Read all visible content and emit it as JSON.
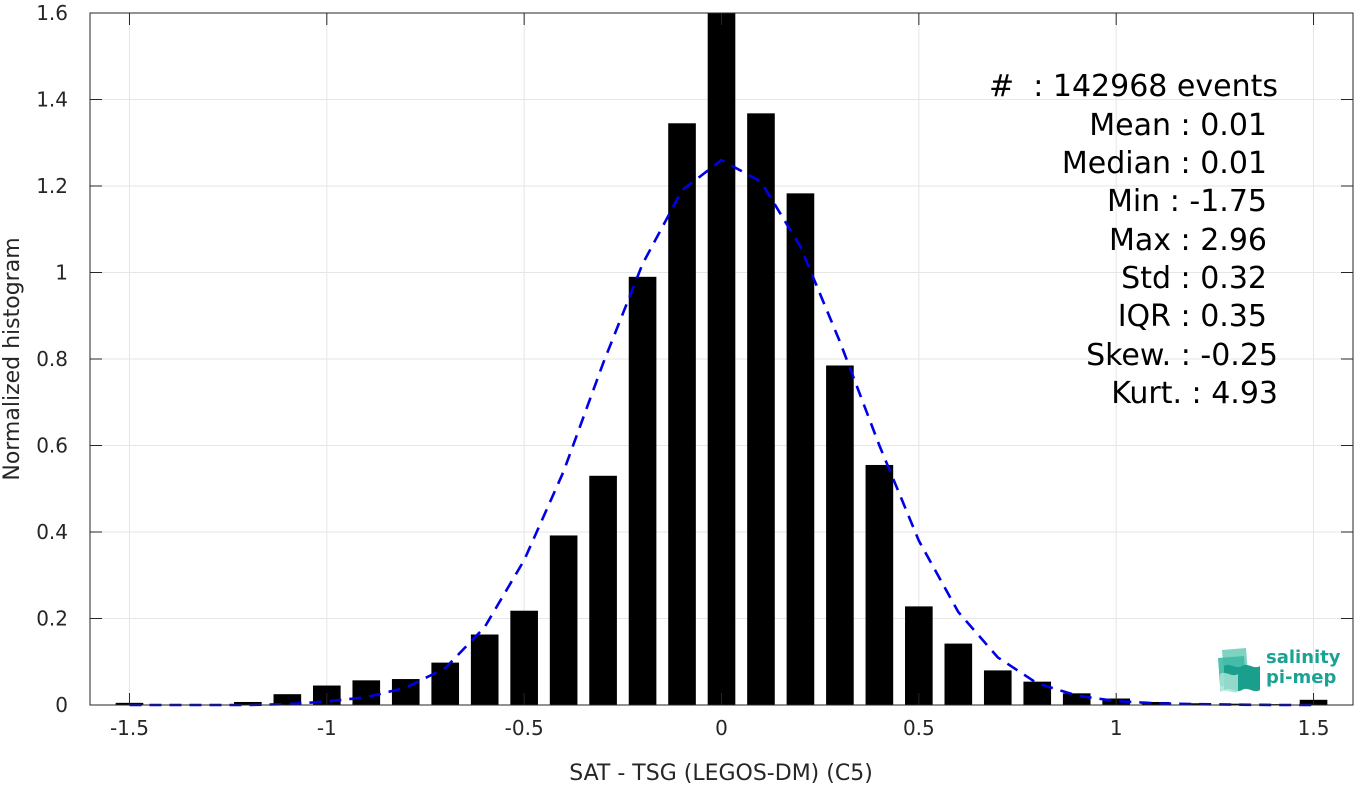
{
  "chart_data": {
    "type": "bar",
    "xlabel": "SAT - TSG (LEGOS-DM) (C5)",
    "ylabel": "Normalized histogram",
    "xlim": [
      -1.6,
      1.6
    ],
    "ylim": [
      0,
      1.6
    ],
    "xticks": [
      -1.5,
      -1,
      -0.5,
      0,
      0.5,
      1,
      1.5
    ],
    "xtick_labels": [
      "-1.5",
      "-1",
      "-0.5",
      "0",
      "0.5",
      "1",
      "1.5"
    ],
    "yticks": [
      0,
      0.2,
      0.4,
      0.6,
      0.8,
      1,
      1.2,
      1.4,
      1.6
    ],
    "ytick_labels": [
      "0",
      "0.2",
      "0.4",
      "0.6",
      "0.8",
      "1",
      "1.2",
      "1.4",
      "1.6"
    ],
    "grid": true,
    "bar_width": 0.07,
    "bins": [
      {
        "x": -1.5,
        "value": 0.005
      },
      {
        "x": -1.4,
        "value": 0.0
      },
      {
        "x": -1.3,
        "value": 0.0
      },
      {
        "x": -1.2,
        "value": 0.007
      },
      {
        "x": -1.1,
        "value": 0.025
      },
      {
        "x": -1.0,
        "value": 0.045
      },
      {
        "x": -0.9,
        "value": 0.057
      },
      {
        "x": -0.8,
        "value": 0.06
      },
      {
        "x": -0.7,
        "value": 0.098
      },
      {
        "x": -0.6,
        "value": 0.163
      },
      {
        "x": -0.5,
        "value": 0.218
      },
      {
        "x": -0.4,
        "value": 0.392
      },
      {
        "x": -0.3,
        "value": 0.53
      },
      {
        "x": -0.2,
        "value": 0.99
      },
      {
        "x": -0.1,
        "value": 1.345
      },
      {
        "x": 0.0,
        "value": 1.6
      },
      {
        "x": 0.1,
        "value": 1.368
      },
      {
        "x": 0.2,
        "value": 1.183
      },
      {
        "x": 0.3,
        "value": 0.785
      },
      {
        "x": 0.4,
        "value": 0.555
      },
      {
        "x": 0.5,
        "value": 0.228
      },
      {
        "x": 0.6,
        "value": 0.142
      },
      {
        "x": 0.7,
        "value": 0.08
      },
      {
        "x": 0.8,
        "value": 0.054
      },
      {
        "x": 0.9,
        "value": 0.027
      },
      {
        "x": 1.0,
        "value": 0.015
      },
      {
        "x": 1.1,
        "value": 0.007
      },
      {
        "x": 1.2,
        "value": 0.004
      },
      {
        "x": 1.3,
        "value": 0.003
      },
      {
        "x": 1.4,
        "value": 0.002
      },
      {
        "x": 1.5,
        "value": 0.012
      }
    ],
    "fit_curve": {
      "style": "dashed",
      "color": "#0000e6",
      "points": [
        [
          -1.5,
          0.0
        ],
        [
          -1.4,
          0.0
        ],
        [
          -1.3,
          0.0
        ],
        [
          -1.2,
          0.0
        ],
        [
          -1.1,
          0.002
        ],
        [
          -1.0,
          0.008
        ],
        [
          -0.9,
          0.018
        ],
        [
          -0.8,
          0.04
        ],
        [
          -0.7,
          0.085
        ],
        [
          -0.6,
          0.18
        ],
        [
          -0.5,
          0.335
        ],
        [
          -0.4,
          0.54
        ],
        [
          -0.3,
          0.79
        ],
        [
          -0.2,
          1.02
        ],
        [
          -0.1,
          1.19
        ],
        [
          0.0,
          1.26
        ],
        [
          0.1,
          1.21
        ],
        [
          0.2,
          1.06
        ],
        [
          0.3,
          0.84
        ],
        [
          0.4,
          0.6
        ],
        [
          0.5,
          0.38
        ],
        [
          0.6,
          0.215
        ],
        [
          0.7,
          0.11
        ],
        [
          0.8,
          0.05
        ],
        [
          0.9,
          0.022
        ],
        [
          1.0,
          0.009
        ],
        [
          1.1,
          0.004
        ],
        [
          1.2,
          0.002
        ],
        [
          1.3,
          0.001
        ],
        [
          1.4,
          0.0
        ],
        [
          1.5,
          0.0
        ]
      ]
    },
    "colors": {
      "bars": "#000000",
      "fit": "#0000e6",
      "grid": "#e6e6e6",
      "axis": "#262626"
    }
  },
  "stats": [
    {
      "label": "#  : 142968 events"
    },
    {
      "label": "Mean : 0.01"
    },
    {
      "label": "Median : 0.01"
    },
    {
      "label": "Min : -1.75"
    },
    {
      "label": "Max : 2.96"
    },
    {
      "label": "Std : 0.32"
    },
    {
      "label": "IQR : 0.35"
    },
    {
      "label": "Skew. : -0.25"
    },
    {
      "label": "Kurt. : 4.93"
    }
  ],
  "logo": {
    "line1": "salinity",
    "line2": "pi-mep",
    "color": "#1aa394"
  }
}
